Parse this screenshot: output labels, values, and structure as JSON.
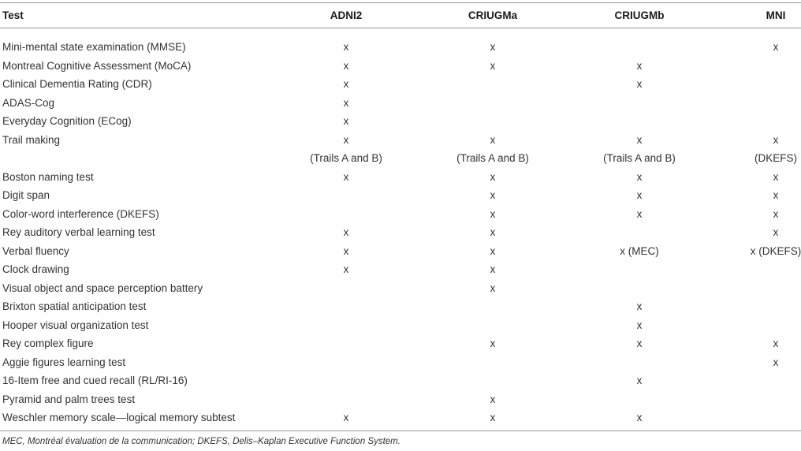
{
  "table": {
    "headers": [
      "Test",
      "ADNI2",
      "CRIUGMa",
      "CRIUGMb",
      "MNI"
    ],
    "rows": [
      {
        "test": "Mini-mental state examination (MMSE)",
        "cells": [
          "x",
          "x",
          "",
          "x"
        ]
      },
      {
        "test": "Montreal Cognitive Assessment (MoCA)",
        "cells": [
          "x",
          "x",
          "x",
          ""
        ]
      },
      {
        "test": "Clinical Dementia Rating (CDR)",
        "cells": [
          "x",
          "",
          "x",
          ""
        ]
      },
      {
        "test": "ADAS-Cog",
        "cells": [
          "x",
          "",
          "",
          ""
        ]
      },
      {
        "test": "Everyday Cognition (ECog)",
        "cells": [
          "x",
          "",
          "",
          ""
        ]
      },
      {
        "test": "Trail making",
        "cells": [
          "x",
          "x",
          "x",
          "x"
        ]
      },
      {
        "test": "",
        "cells": [
          "(Trails A and B)",
          "(Trails A and B)",
          "(Trails A and B)",
          "(DKEFS)"
        ]
      },
      {
        "test": "Boston naming test",
        "cells": [
          "x",
          "x",
          "x",
          "x"
        ]
      },
      {
        "test": "Digit span",
        "cells": [
          "",
          "x",
          "x",
          "x"
        ]
      },
      {
        "test": "Color-word interference (DKEFS)",
        "cells": [
          "",
          "x",
          "x",
          "x"
        ]
      },
      {
        "test": "Rey auditory verbal learning test",
        "cells": [
          "x",
          "x",
          "",
          "x"
        ]
      },
      {
        "test": "Verbal fluency",
        "cells": [
          "x",
          "x",
          "x (MEC)",
          "x (DKEFS)"
        ]
      },
      {
        "test": "Clock drawing",
        "cells": [
          "x",
          "x",
          "",
          ""
        ]
      },
      {
        "test": "Visual object and space perception battery",
        "cells": [
          "",
          "x",
          "",
          ""
        ]
      },
      {
        "test": "Brixton spatial anticipation test",
        "cells": [
          "",
          "",
          "x",
          ""
        ]
      },
      {
        "test": "Hooper visual organization test",
        "cells": [
          "",
          "",
          "x",
          ""
        ]
      },
      {
        "test": "Rey complex figure",
        "cells": [
          "",
          "x",
          "x",
          "x"
        ]
      },
      {
        "test": "Aggie figures learning test",
        "cells": [
          "",
          "",
          "",
          "x"
        ]
      },
      {
        "test": "16-Item free and cued recall (RL/RI-16)",
        "cells": [
          "",
          "",
          "x",
          ""
        ]
      },
      {
        "test": "Pyramid and palm trees test",
        "cells": [
          "",
          "x",
          "",
          ""
        ]
      },
      {
        "test": "Weschler memory scale—logical memory subtest",
        "cells": [
          "x",
          "x",
          "x",
          ""
        ]
      }
    ]
  },
  "footnote": "MEC, Montréal évaluation de la communication; DKEFS, Delis–Kaplan Executive Function System."
}
